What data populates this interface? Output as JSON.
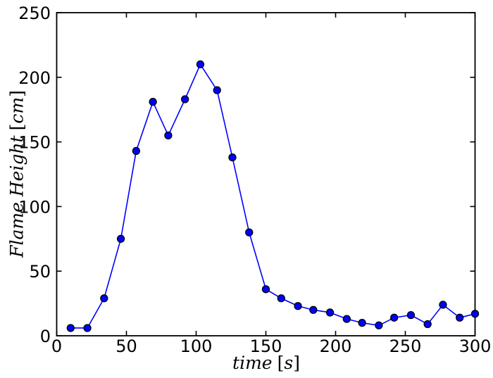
{
  "chart_data": {
    "type": "line",
    "title": "",
    "xlabel": "time [s]",
    "ylabel": "Flame Height [cm]",
    "xlabel_parts": {
      "name": "time",
      "open": "[",
      "unit": "s",
      "close": "]"
    },
    "ylabel_parts": {
      "name": "Flame Height",
      "open": "[",
      "unit": "cm",
      "close": "]"
    },
    "x": [
      10,
      22,
      34,
      46,
      57,
      69,
      80,
      92,
      103,
      115,
      126,
      138,
      150,
      161,
      173,
      184,
      196,
      208,
      219,
      231,
      242,
      254,
      266,
      277,
      289,
      300
    ],
    "series": [
      {
        "name": "flame height",
        "values": [
          6,
          6,
          29,
          75,
          143,
          181,
          155,
          183,
          210,
          190,
          138,
          80,
          36,
          29,
          23,
          20,
          18,
          13,
          10,
          8,
          14,
          16,
          9,
          24,
          14,
          17
        ]
      }
    ],
    "xlim": [
      0,
      300
    ],
    "ylim": [
      0,
      250
    ],
    "x_ticks": [
      "0",
      "50",
      "100",
      "150",
      "200",
      "250",
      "300"
    ],
    "y_ticks": [
      "0",
      "50",
      "100",
      "150",
      "200",
      "250"
    ],
    "grid": false,
    "legend": "none",
    "line_color": "#0000ff",
    "marker": "circle",
    "marker_fill": "#0000ff",
    "marker_edge_color": "#000000",
    "axis_color": "#000000",
    "background_color": "#ffffff"
  }
}
